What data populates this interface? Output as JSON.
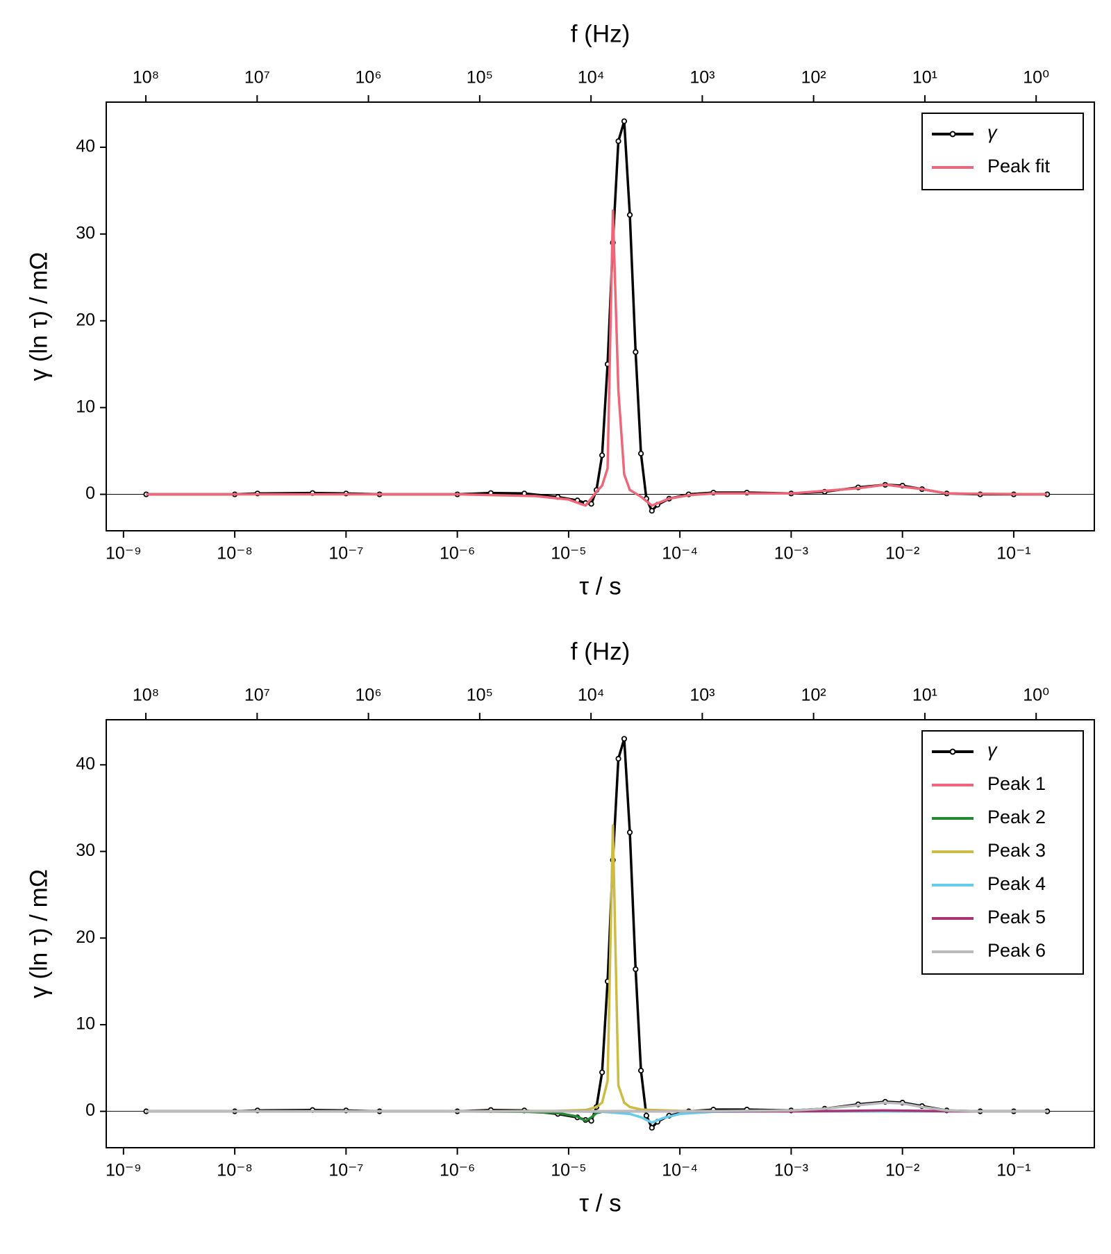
{
  "chart_data": [
    {
      "type": "line",
      "x2label": "f (Hz)",
      "xlabel": "τ / s",
      "ylabel": "γ (ln τ) / mΩ",
      "xscale": "log",
      "x2scale": "log",
      "xlim": [
        7e-10,
        0.53
      ],
      "x2lim": [
        227000000,
        0.3
      ],
      "ylim": [
        -4.2,
        45.2
      ],
      "xticks": [
        {
          "value": 1e-09,
          "label": "10⁻⁹"
        },
        {
          "value": 1e-08,
          "label": "10⁻⁸"
        },
        {
          "value": 1e-07,
          "label": "10⁻⁷"
        },
        {
          "value": 1e-06,
          "label": "10⁻⁶"
        },
        {
          "value": 1e-05,
          "label": "10⁻⁵"
        },
        {
          "value": 0.0001,
          "label": "10⁻⁴"
        },
        {
          "value": 0.001,
          "label": "10⁻³"
        },
        {
          "value": 0.01,
          "label": "10⁻²"
        },
        {
          "value": 0.1,
          "label": "10⁻¹"
        }
      ],
      "x2ticks": [
        {
          "value": 100000000.0,
          "label": "10⁸"
        },
        {
          "value": 10000000.0,
          "label": "10⁷"
        },
        {
          "value": 1000000.0,
          "label": "10⁶"
        },
        {
          "value": 100000.0,
          "label": "10⁵"
        },
        {
          "value": 10000.0,
          "label": "10⁴"
        },
        {
          "value": 1000.0,
          "label": "10³"
        },
        {
          "value": 100.0,
          "label": "10²"
        },
        {
          "value": 10,
          "label": "10¹"
        },
        {
          "value": 1,
          "label": "10⁰"
        }
      ],
      "yticks": [
        0,
        10,
        20,
        30,
        40
      ],
      "reference_line": 0,
      "legend": "upper right",
      "series": [
        {
          "name": "γ",
          "color": "#000000",
          "markers": true,
          "x": [
            1.6e-09,
            1e-08,
            1.6e-08,
            5e-08,
            1e-07,
            2e-07,
            1e-06,
            2e-06,
            4e-06,
            8e-06,
            1.2e-05,
            1.42e-05,
            1.6e-05,
            1.78e-05,
            2e-05,
            2.24e-05,
            2.5e-05,
            2.8e-05,
            3.16e-05,
            3.55e-05,
            4e-05,
            4.47e-05,
            5e-05,
            5.6e-05,
            6.3e-05,
            8e-05,
            0.00012,
            0.0002,
            0.0004,
            0.001,
            0.002,
            0.004,
            0.007,
            0.01,
            0.015,
            0.025,
            0.05,
            0.1,
            0.2
          ],
          "values": [
            0,
            0,
            0.1,
            0.15,
            0.1,
            0,
            0,
            0.15,
            0.1,
            -0.3,
            -0.7,
            -1.0,
            -1.1,
            0.5,
            4.5,
            15,
            29,
            40.7,
            43,
            32.2,
            16.4,
            4.7,
            -0.5,
            -1.9,
            -1.2,
            -0.5,
            0,
            0.2,
            0.2,
            0.1,
            0.3,
            0.8,
            1.1,
            1.0,
            0.6,
            0.1,
            0,
            0,
            0
          ]
        },
        {
          "name": "Peak fit",
          "color": "#ee6677",
          "x": [
            1.6e-09,
            1e-06,
            5e-06,
            1e-05,
            1.42e-05,
            1.78e-05,
            2e-05,
            2.24e-05,
            2.5e-05,
            2.8e-05,
            3.16e-05,
            3.55e-05,
            4.5e-05,
            5.6e-05,
            8e-05,
            0.00012,
            0.0002,
            0.001,
            0.004,
            0.007,
            0.015,
            0.025,
            0.2
          ],
          "values": [
            0,
            0,
            -0.2,
            -0.6,
            -1.3,
            0.3,
            1,
            3,
            32.7,
            12,
            2.3,
            0.5,
            -0.3,
            -1.3,
            -0.5,
            -0.1,
            0.1,
            0.1,
            0.7,
            1.1,
            0.6,
            0.1,
            0
          ]
        }
      ]
    },
    {
      "type": "line",
      "x2label": "f (Hz)",
      "xlabel": "τ / s",
      "ylabel": "γ (ln τ) / mΩ",
      "xscale": "log",
      "x2scale": "log",
      "xlim": [
        7e-10,
        0.53
      ],
      "x2lim": [
        227000000,
        0.3
      ],
      "ylim": [
        -4.2,
        45.2
      ],
      "xticks": [
        {
          "value": 1e-09,
          "label": "10⁻⁹"
        },
        {
          "value": 1e-08,
          "label": "10⁻⁸"
        },
        {
          "value": 1e-07,
          "label": "10⁻⁷"
        },
        {
          "value": 1e-06,
          "label": "10⁻⁶"
        },
        {
          "value": 1e-05,
          "label": "10⁻⁵"
        },
        {
          "value": 0.0001,
          "label": "10⁻⁴"
        },
        {
          "value": 0.001,
          "label": "10⁻³"
        },
        {
          "value": 0.01,
          "label": "10⁻²"
        },
        {
          "value": 0.1,
          "label": "10⁻¹"
        }
      ],
      "x2ticks": [
        {
          "value": 100000000.0,
          "label": "10⁸"
        },
        {
          "value": 10000000.0,
          "label": "10⁷"
        },
        {
          "value": 1000000.0,
          "label": "10⁶"
        },
        {
          "value": 100000.0,
          "label": "10⁵"
        },
        {
          "value": 10000.0,
          "label": "10⁴"
        },
        {
          "value": 1000.0,
          "label": "10³"
        },
        {
          "value": 100.0,
          "label": "10²"
        },
        {
          "value": 10,
          "label": "10¹"
        },
        {
          "value": 1,
          "label": "10⁰"
        }
      ],
      "yticks": [
        0,
        10,
        20,
        30,
        40
      ],
      "reference_line": 0,
      "legend": "upper right",
      "series": [
        {
          "name": "γ",
          "color": "#000000",
          "markers": true,
          "x": [
            1.6e-09,
            1e-08,
            1.6e-08,
            5e-08,
            1e-07,
            2e-07,
            1e-06,
            2e-06,
            4e-06,
            8e-06,
            1.2e-05,
            1.42e-05,
            1.6e-05,
            1.78e-05,
            2e-05,
            2.24e-05,
            2.5e-05,
            2.8e-05,
            3.16e-05,
            3.55e-05,
            4e-05,
            4.47e-05,
            5e-05,
            5.6e-05,
            6.3e-05,
            8e-05,
            0.00012,
            0.0002,
            0.0004,
            0.001,
            0.002,
            0.004,
            0.007,
            0.01,
            0.015,
            0.025,
            0.05,
            0.1,
            0.2
          ],
          "values": [
            0,
            0,
            0.1,
            0.15,
            0.1,
            0,
            0,
            0.15,
            0.1,
            -0.3,
            -0.7,
            -1.0,
            -1.1,
            0.5,
            4.5,
            15,
            29,
            40.7,
            43,
            32.2,
            16.4,
            4.7,
            -0.5,
            -1.9,
            -1.2,
            -0.5,
            0,
            0.2,
            0.2,
            0.1,
            0.3,
            0.8,
            1.1,
            1.0,
            0.6,
            0.1,
            0,
            0,
            0
          ]
        },
        {
          "name": "Peak 1",
          "color": "#ee6677",
          "x": [
            1.6e-09,
            1e-06,
            0.001,
            0.2
          ],
          "values": [
            0,
            0,
            0,
            0
          ]
        },
        {
          "name": "Peak 2",
          "color": "#228833",
          "x": [
            1.6e-09,
            1e-06,
            4e-06,
            8e-06,
            1.2e-05,
            1.42e-05,
            1.6e-05,
            1.78e-05,
            2e-05,
            2.5e-05,
            0.0001,
            0.2
          ],
          "values": [
            0,
            0,
            -0.05,
            -0.2,
            -0.6,
            -1.1,
            -0.7,
            -0.2,
            -0.05,
            0,
            0,
            0
          ]
        },
        {
          "name": "Peak 3",
          "color": "#ccbb44",
          "x": [
            1.6e-09,
            1e-06,
            8e-06,
            1.42e-05,
            1.78e-05,
            2e-05,
            2.24e-05,
            2.5e-05,
            2.8e-05,
            3.16e-05,
            3.55e-05,
            4.5e-05,
            0.0001,
            0.001,
            0.2
          ],
          "values": [
            0,
            0,
            0.05,
            0.15,
            0.5,
            1,
            3.5,
            33,
            3,
            1,
            0.5,
            0.2,
            0.05,
            0,
            0
          ]
        },
        {
          "name": "Peak 4",
          "color": "#66ccee",
          "x": [
            1.6e-09,
            1e-05,
            2e-05,
            3.55e-05,
            4.5e-05,
            5.6e-05,
            7e-05,
            0.0001,
            0.0002,
            0.001,
            0.2
          ],
          "values": [
            0,
            0,
            -0.05,
            -0.3,
            -0.7,
            -1.3,
            -0.8,
            -0.3,
            -0.05,
            0,
            0
          ]
        },
        {
          "name": "Peak 5",
          "color": "#aa3377",
          "x": [
            1.6e-09,
            0.001,
            0.003,
            0.007,
            0.015,
            0.03,
            0.2
          ],
          "values": [
            0,
            0,
            0.05,
            0.1,
            0.05,
            0,
            0
          ]
        },
        {
          "name": "Peak 6",
          "color": "#bbbbbb",
          "x": [
            1.6e-09,
            1e-06,
            0.0001,
            0.001,
            0.002,
            0.004,
            0.007,
            0.01,
            0.015,
            0.025,
            0.05,
            0.2
          ],
          "values": [
            0,
            0,
            0,
            0.1,
            0.3,
            0.7,
            1.0,
            0.9,
            0.5,
            0.1,
            0,
            0
          ]
        }
      ]
    }
  ]
}
